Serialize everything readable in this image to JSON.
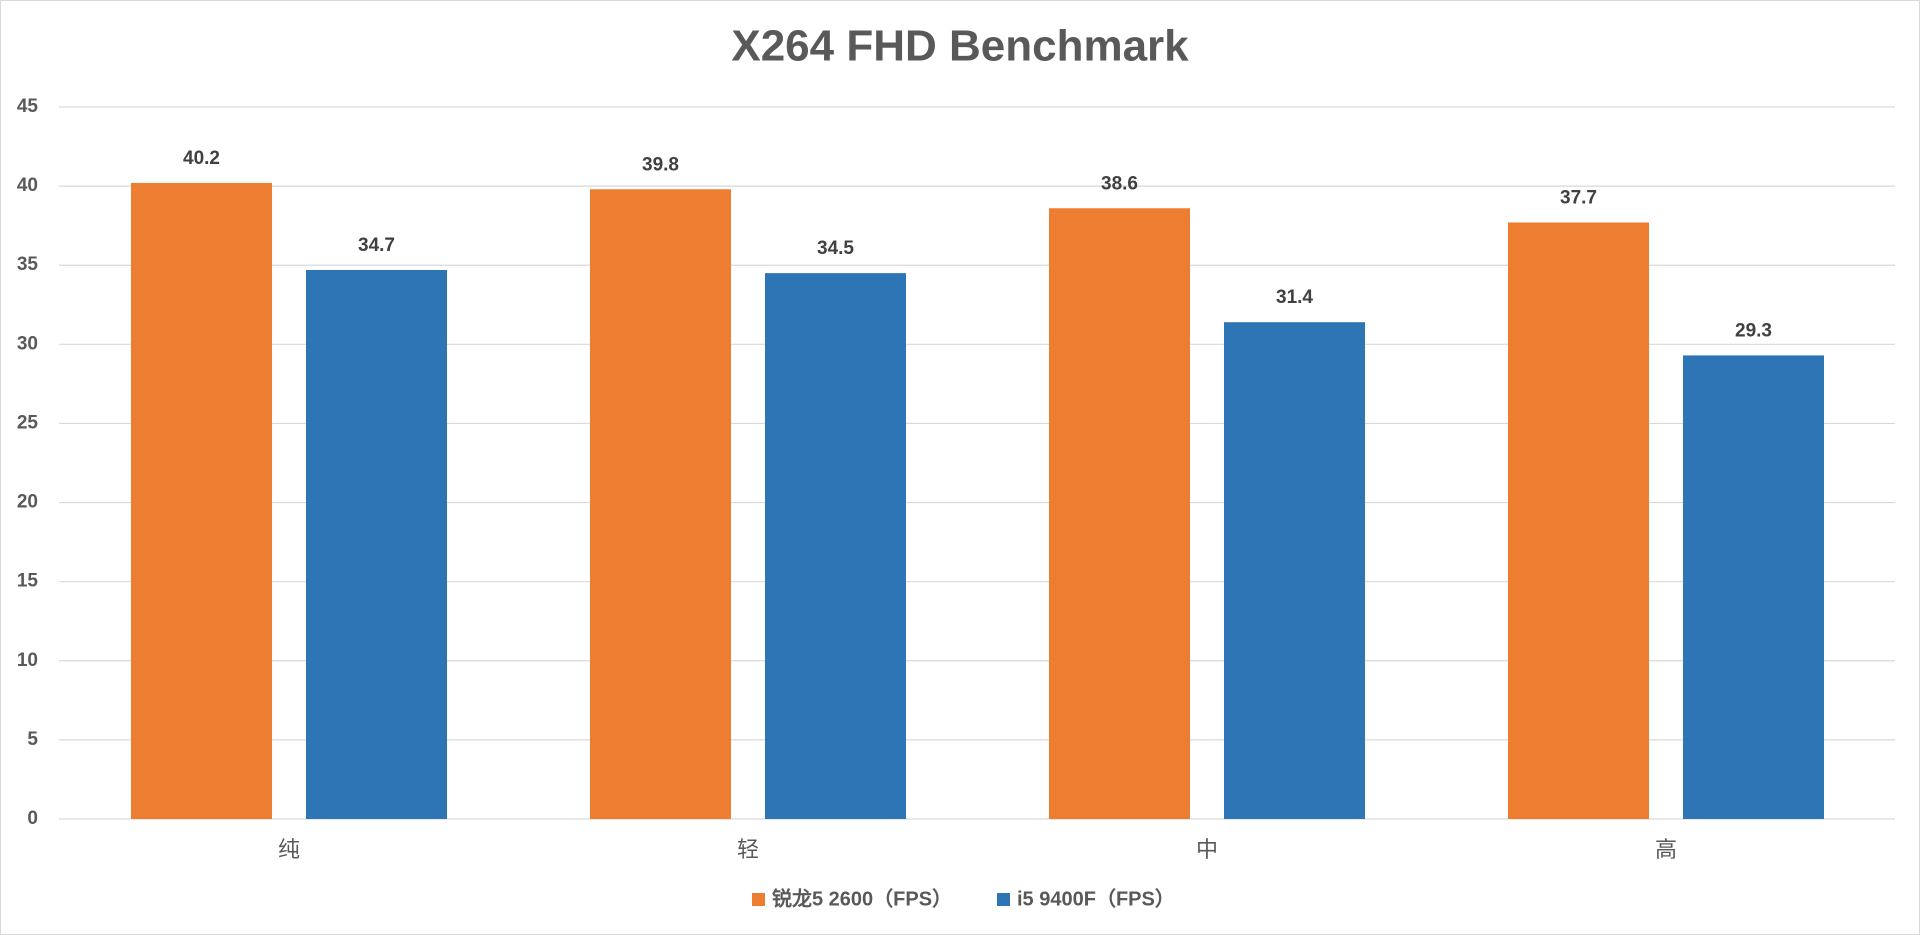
{
  "chart_data": {
    "type": "bar",
    "title": "X264 FHD Benchmark",
    "categories": [
      "纯",
      "轻",
      "中",
      "高"
    ],
    "series": [
      {
        "name": "锐龙5 2600（FPS）",
        "color": "#ED7D31",
        "values": [
          40.2,
          39.8,
          38.6,
          37.7
        ]
      },
      {
        "name": "i5 9400F（FPS）",
        "color": "#2E75B6",
        "values": [
          34.7,
          34.5,
          31.4,
          29.3
        ]
      }
    ],
    "ylim": [
      0,
      45
    ],
    "yticks": [
      0,
      5,
      10,
      15,
      20,
      25,
      30,
      35,
      40,
      45
    ],
    "grid": true,
    "legend": "bottom"
  }
}
